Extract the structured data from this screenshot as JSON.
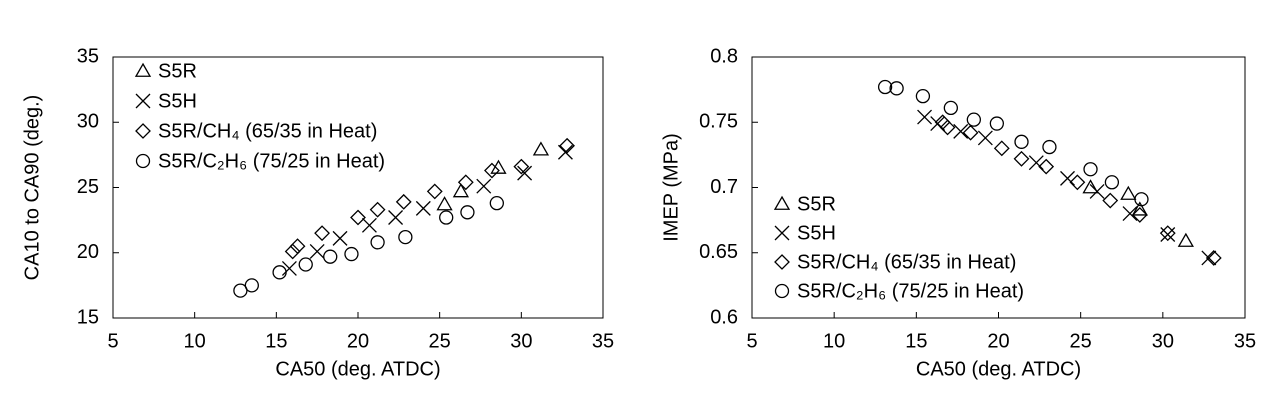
{
  "chart_data": [
    {
      "type": "scatter",
      "xlabel": "CA50 (deg. ATDC)",
      "ylabel": "CA10 to CA90 (deg.)",
      "xlim": [
        5,
        35
      ],
      "xticks": [
        5,
        10,
        15,
        20,
        25,
        30,
        35
      ],
      "ylim": [
        15,
        35
      ],
      "yticks": [
        15,
        20,
        25,
        30,
        35
      ],
      "legend": "upper left",
      "series": [
        {
          "name": "S5R",
          "marker": "triangle",
          "color": "#000000",
          "x": [
            25.3,
            26.3,
            28.6,
            31.2
          ],
          "values": [
            23.7,
            24.7,
            26.5,
            27.9
          ]
        },
        {
          "name": "S5H",
          "marker": "x",
          "color": "#000000",
          "x": [
            15.8,
            17.5,
            18.9,
            20.7,
            22.3,
            24.0,
            27.7,
            30.2,
            32.7
          ],
          "values": [
            18.8,
            20.1,
            21.1,
            22.1,
            22.7,
            23.4,
            25.1,
            26.1,
            27.7
          ]
        },
        {
          "name": "S5R/CH₄ (65/35 in Heat)",
          "marker": "diamond",
          "color": "#000000",
          "x": [
            16.0,
            16.3,
            17.8,
            20.0,
            21.2,
            22.8,
            24.7,
            26.6,
            28.2,
            30.0,
            32.8
          ],
          "values": [
            20.1,
            20.5,
            21.5,
            22.7,
            23.3,
            23.9,
            24.7,
            25.4,
            26.3,
            26.6,
            28.2
          ]
        },
        {
          "name": "S5R/C₂H₆ (75/25 in Heat)",
          "marker": "circle",
          "color": "#000000",
          "x": [
            12.8,
            13.5,
            15.2,
            16.8,
            18.3,
            19.6,
            21.2,
            22.9,
            25.4,
            26.7,
            28.5
          ],
          "values": [
            17.1,
            17.5,
            18.5,
            19.1,
            19.7,
            19.9,
            20.8,
            21.2,
            22.7,
            23.1,
            23.8
          ]
        }
      ]
    },
    {
      "type": "scatter",
      "xlabel": "CA50 (deg. ATDC)",
      "ylabel": "IMEP (MPa)",
      "xlim": [
        5,
        35
      ],
      "xticks": [
        5,
        10,
        15,
        20,
        25,
        30,
        35
      ],
      "ylim": [
        0.6,
        0.8
      ],
      "yticks": [
        0.6,
        0.65,
        0.7,
        0.75,
        0.8
      ],
      "legend": "lower left",
      "series": [
        {
          "name": "S5R",
          "marker": "triangle",
          "color": "#000000",
          "x": [
            25.6,
            27.9,
            28.6,
            31.4
          ],
          "values": [
            0.7,
            0.695,
            0.683,
            0.659
          ]
        },
        {
          "name": "S5H",
          "marker": "x",
          "color": "#000000",
          "x": [
            15.5,
            16.3,
            17.7,
            19.2,
            22.3,
            24.2,
            26.0,
            28.0,
            30.3,
            32.8
          ],
          "values": [
            0.754,
            0.749,
            0.743,
            0.738,
            0.719,
            0.707,
            0.697,
            0.68,
            0.664,
            0.646
          ]
        },
        {
          "name": "S5R/CH₄ (65/35 in Heat)",
          "marker": "diamond",
          "color": "#000000",
          "x": [
            16.6,
            16.9,
            18.3,
            20.2,
            21.4,
            22.9,
            24.8,
            26.8,
            28.6,
            30.3,
            33.1
          ],
          "values": [
            0.75,
            0.746,
            0.742,
            0.73,
            0.722,
            0.716,
            0.704,
            0.69,
            0.679,
            0.665,
            0.646
          ]
        },
        {
          "name": "S5R/C₂H₆ (75/25 in Heat)",
          "marker": "circle",
          "color": "#000000",
          "x": [
            13.1,
            13.8,
            15.4,
            17.1,
            18.5,
            19.9,
            21.4,
            23.1,
            25.6,
            26.9,
            28.7
          ],
          "values": [
            0.777,
            0.776,
            0.77,
            0.761,
            0.752,
            0.749,
            0.735,
            0.731,
            0.714,
            0.704,
            0.691
          ]
        }
      ]
    }
  ]
}
